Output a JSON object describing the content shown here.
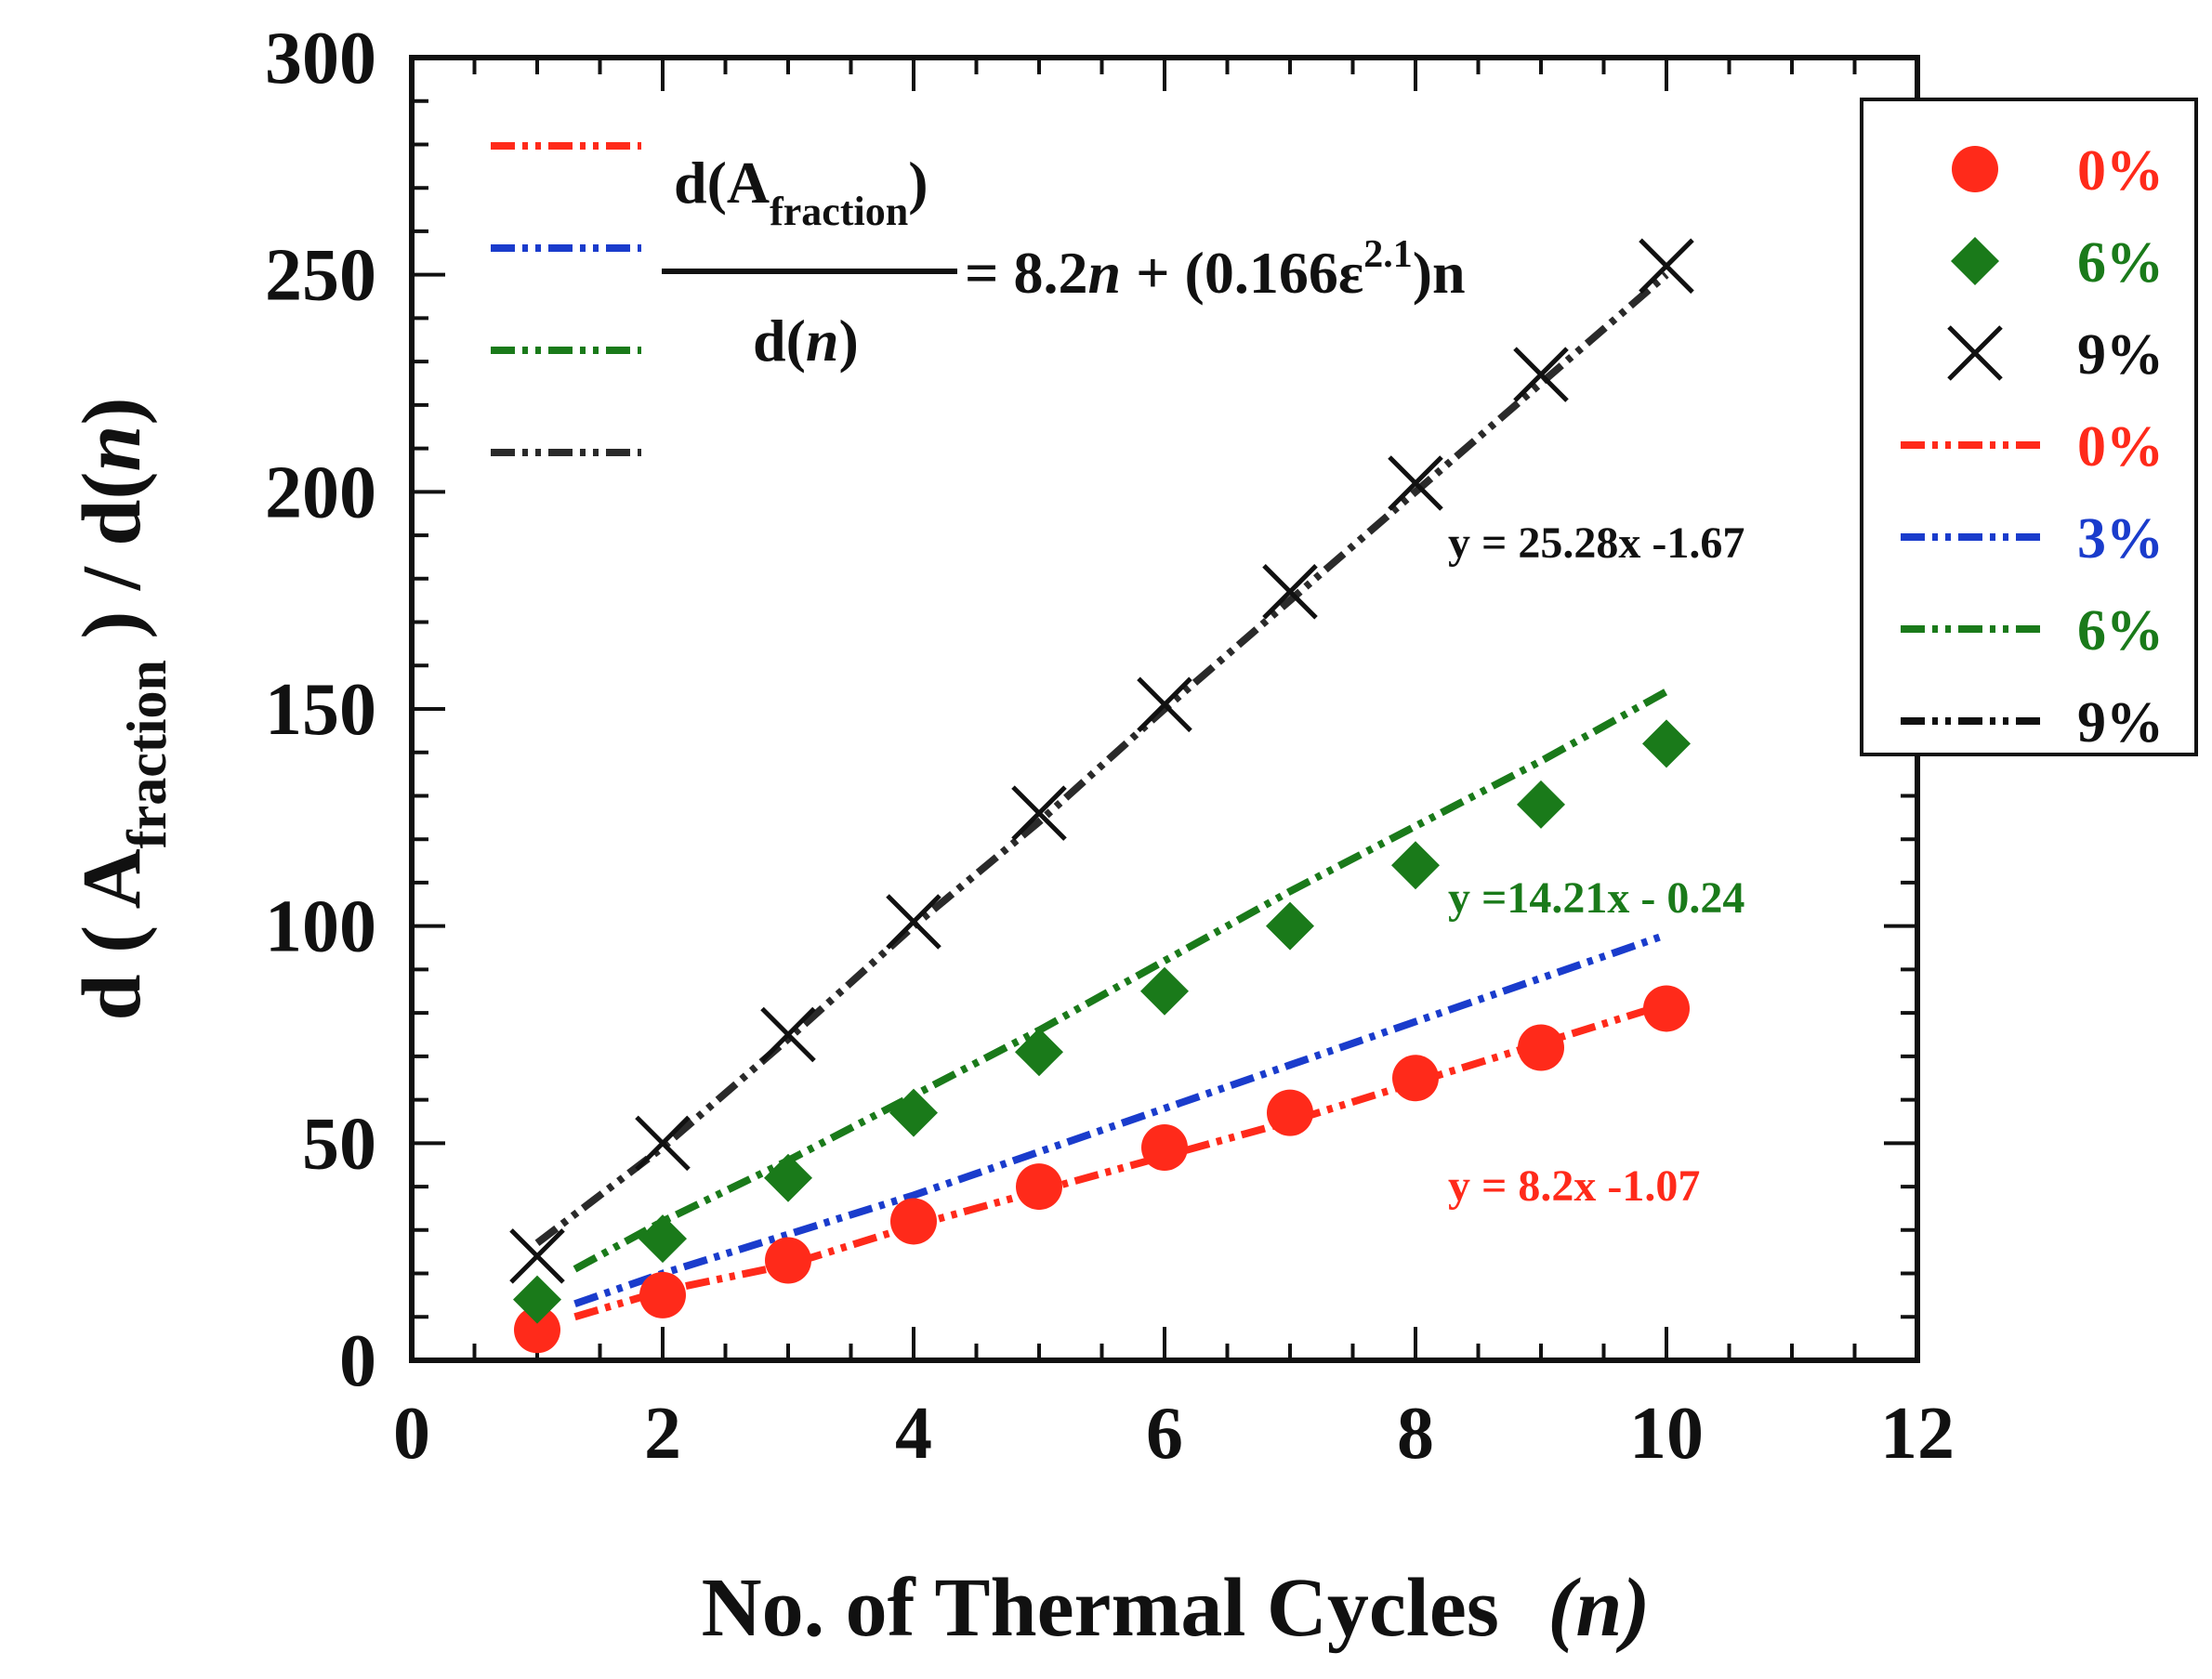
{
  "chart_data": {
    "type": "scatter",
    "xlabel": "No. of Thermal Cycles",
    "xlabel_var": "(n)",
    "ylabel": {
      "prefix": "d ( A",
      "subscript": "fraction",
      "suffix_a": " ) / d(",
      "var": "n",
      "suffix_b": ")"
    },
    "xlim": [
      0,
      12
    ],
    "ylim": [
      0,
      300
    ],
    "x_ticks": [
      0,
      2,
      4,
      6,
      8,
      10,
      12
    ],
    "y_ticks": [
      0,
      50,
      100,
      150,
      200,
      250,
      300
    ],
    "x": [
      1,
      2,
      3,
      4,
      5,
      6,
      7,
      8,
      9,
      10
    ],
    "series": [
      {
        "marker": "circle",
        "color": "#ff2a1a",
        "values": [
          7,
          15,
          23,
          32,
          40,
          49,
          57,
          65,
          72,
          81
        ]
      },
      {
        "marker": "diamond",
        "color": "#1a7a1a",
        "values": [
          14,
          28,
          42,
          57,
          71,
          85,
          100,
          114,
          128,
          142
        ]
      },
      {
        "marker": "cross",
        "color": "#111111",
        "values": [
          24,
          50,
          75,
          101,
          126,
          151,
          177,
          202,
          227,
          252
        ]
      }
    ],
    "fit_lines": [
      {
        "color": "#ff2a1a",
        "x": [
          1.3,
          2,
          3,
          4,
          5,
          6,
          7,
          8,
          9,
          10
        ],
        "values": [
          10,
          16,
          22,
          31,
          39,
          47,
          55,
          64,
          73,
          82
        ]
      },
      {
        "color": "#1a3ccc",
        "x": [
          1.3,
          2,
          3,
          4,
          5,
          6,
          7,
          8,
          9,
          10
        ],
        "values": [
          13,
          20,
          29,
          38,
          48,
          58,
          68,
          78,
          88,
          98
        ]
      },
      {
        "color": "#1a7a1a",
        "x": [
          1.3,
          2,
          3,
          4,
          5,
          6,
          7,
          8,
          9,
          10
        ],
        "values": [
          21,
          32,
          46,
          61,
          76,
          92,
          108,
          123,
          138,
          154
        ]
      },
      {
        "color": "#2a2a2a",
        "x": [
          1,
          2,
          3,
          4,
          5,
          6,
          7,
          8,
          9,
          10
        ],
        "values": [
          27,
          49,
          74,
          100,
          124,
          150,
          175,
          200,
          225,
          250
        ]
      }
    ],
    "equations": [
      {
        "text": "y = 25.28x -1.67",
        "color": "#111111"
      },
      {
        "text": "y =14.21x - 0.24",
        "color": "#1a7a1a"
      },
      {
        "text": "y = 8.2x -1.07",
        "color": "#ff2a1a"
      }
    ],
    "formula": {
      "num_prefix": "d(A",
      "num_sub": "fraction",
      "num_suffix": ")",
      "den_prefix": "d(",
      "den_var": "n",
      "den_suffix": ")",
      "rhs_a": "= 8.2",
      "rhs_var": "n",
      "rhs_b": " + (0.166ε",
      "rhs_sup": "2.1",
      "rhs_c": ")n"
    },
    "legend_placement": "right-outside-top",
    "legend": [
      {
        "kind": "marker",
        "marker": "circle",
        "label": "0%",
        "color": "#ff2a1a"
      },
      {
        "kind": "marker",
        "marker": "diamond",
        "label": "6%",
        "color": "#1a7a1a"
      },
      {
        "kind": "marker",
        "marker": "cross",
        "label": "9%",
        "color": "#111111"
      },
      {
        "kind": "line",
        "label": "0%",
        "color": "#ff2a1a"
      },
      {
        "kind": "line",
        "label": "3%",
        "color": "#1a3ccc"
      },
      {
        "kind": "line",
        "label": "6%",
        "color": "#1a7a1a"
      },
      {
        "kind": "line",
        "label": "9%",
        "color": "#111111"
      }
    ],
    "inner_key_colors": [
      "#ff2a1a",
      "#1a3ccc",
      "#1a7a1a",
      "#2a2a2a"
    ]
  }
}
